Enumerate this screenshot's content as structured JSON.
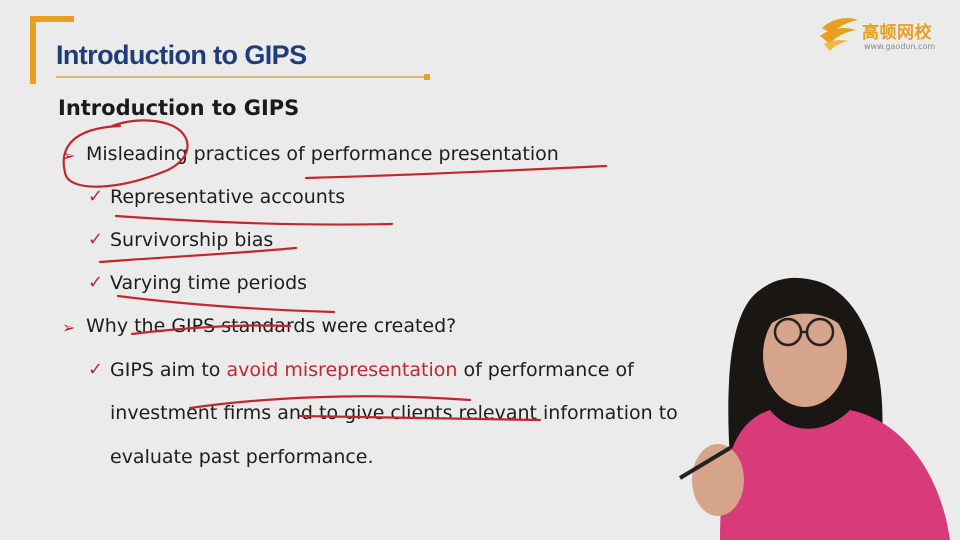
{
  "header": {
    "title": "Introduction to GIPS"
  },
  "logo": {
    "name": "高顿网校",
    "url": "www.gaodun.com"
  },
  "slide": {
    "heading": "Introduction to GIPS",
    "bullet1": "Misleading practices of performance presentation",
    "sub1": "Representative accounts",
    "sub2": "Survivorship bias",
    "sub3": "Varying time periods",
    "bullet2": "Why the GIPS standards were created?",
    "sub4_pre": "GIPS aim to ",
    "sub4_red": "avoid misrepresentation",
    "sub4_post": " of performance of",
    "sub4_line2": "investment firms and to give clients relevant information to",
    "sub4_line3": "evaluate past performance."
  },
  "colors": {
    "accent": "#e8a020",
    "title": "#1f3d78",
    "bullet": "#c0282e",
    "annotation": "#c0282e"
  },
  "icons": [
    "logo-bird-icon",
    "arrow-bullet-icon",
    "checkmark-icon"
  ]
}
